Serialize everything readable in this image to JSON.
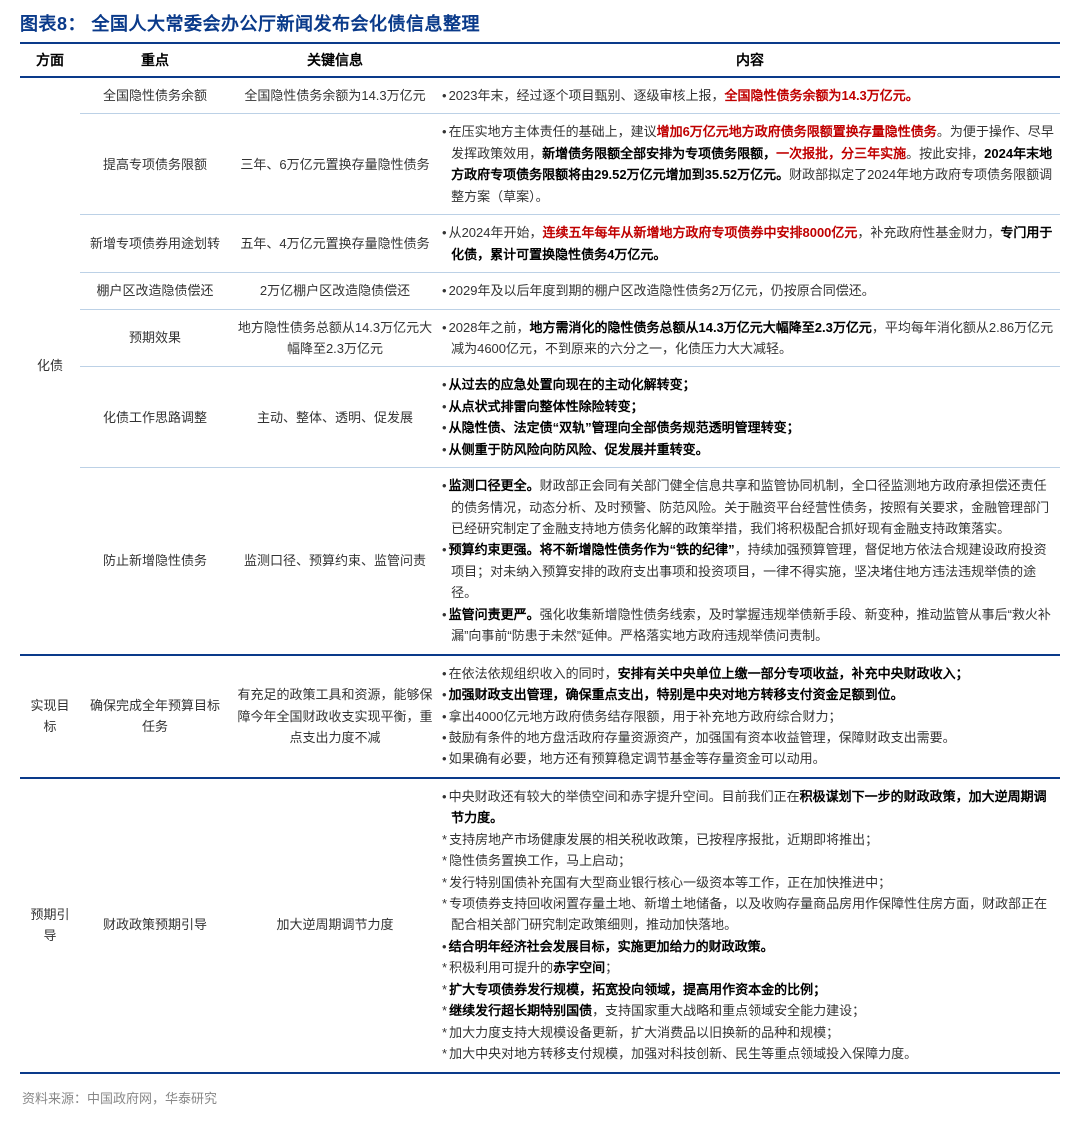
{
  "title": "图表8：  全国人大常委会办公厅新闻发布会化债信息整理",
  "source": "资料来源：中国政府网，华泰研究",
  "colors": {
    "accent": "#0a3a8a",
    "red": "#c00000",
    "row_border": "#bcd1e6",
    "muted": "#888"
  },
  "column_widths": [
    "60px",
    "150px",
    "210px",
    "auto"
  ],
  "headers": [
    "方面",
    "重点",
    "关键信息",
    "内容"
  ],
  "sections": [
    {
      "aspect": "化债",
      "rows": [
        {
          "focus": "全国隐性债务余额",
          "key": "全国隐性债务余额为14.3万亿元",
          "content": [
            {
              "t": "dot",
              "segs": [
                [
                  "",
                  "2023年末，经过逐个项目甄别、逐级审核上报，"
                ],
                [
                  "red",
                  "全国隐性债务余额为14.3万亿元。"
                ]
              ]
            }
          ]
        },
        {
          "focus": "提高专项债务限额",
          "key": "三年、6万亿元置换存量隐性债务",
          "content": [
            {
              "t": "dot",
              "segs": [
                [
                  "",
                  "在压实地方主体责任的基础上，建议"
                ],
                [
                  "red",
                  "增加6万亿元地方政府债务限额置换存量隐性债务"
                ],
                [
                  "",
                  "。为便于操作、尽早发挥政策效用，"
                ],
                [
                  "b",
                  "新增债务限额全部安排为专项债务限额，"
                ],
                [
                  "red",
                  "一次报批，分三年实施"
                ],
                [
                  "",
                  "。按此安排，"
                ],
                [
                  "b",
                  "2024年末地方政府专项债务限额将由29.52万亿元增加到35.52万亿元。"
                ],
                [
                  "",
                  "财政部拟定了2024年地方政府专项债务限额调整方案（草案）。"
                ]
              ]
            }
          ]
        },
        {
          "focus": "新增专项债券用途划转",
          "key": "五年、4万亿元置换存量隐性债务",
          "content": [
            {
              "t": "dot",
              "segs": [
                [
                  "",
                  "从2024年开始，"
                ],
                [
                  "red",
                  "连续五年每年从新增地方政府专项债券中安排8000亿元"
                ],
                [
                  "",
                  "，补充政府性基金财力，"
                ],
                [
                  "b",
                  "专门用于化债，累计可置换隐性债务4万亿元。"
                ]
              ]
            }
          ]
        },
        {
          "focus": "棚户区改造隐债偿还",
          "key": "2万亿棚户区改造隐债偿还",
          "content": [
            {
              "t": "dot",
              "segs": [
                [
                  "",
                  "2029年及以后年度到期的棚户区改造隐性债务2万亿元，仍按原合同偿还。"
                ]
              ]
            }
          ]
        },
        {
          "focus": "预期效果",
          "key": "地方隐性债务总额从14.3万亿元大幅降至2.3万亿元",
          "content": [
            {
              "t": "dot",
              "segs": [
                [
                  "",
                  "2028年之前，"
                ],
                [
                  "b",
                  "地方需消化的隐性债务总额从14.3万亿元大幅降至2.3万亿元"
                ],
                [
                  "",
                  "，平均每年消化额从2.86万亿元减为4600亿元，不到原来的六分之一，化债压力大大减轻。"
                ]
              ]
            }
          ]
        },
        {
          "focus": "化债工作思路调整",
          "key": "主动、整体、透明、促发展",
          "content": [
            {
              "t": "dot",
              "segs": [
                [
                  "b",
                  "从过去的应急处置向现在的主动化解转变；"
                ]
              ]
            },
            {
              "t": "dot",
              "segs": [
                [
                  "b",
                  "从点状式排雷向整体性除险转变；"
                ]
              ]
            },
            {
              "t": "dot",
              "segs": [
                [
                  "b",
                  "从隐性债、法定债“双轨”管理向全部债务规范透明管理转变；"
                ]
              ]
            },
            {
              "t": "dot",
              "segs": [
                [
                  "b",
                  "从侧重于防风险向防风险、促发展并重转变。"
                ]
              ]
            }
          ]
        },
        {
          "focus": "防止新增隐性债务",
          "key": "监测口径、预算约束、监管问责",
          "content": [
            {
              "t": "dot",
              "segs": [
                [
                  "b",
                  "监测口径更全。"
                ],
                [
                  "",
                  "财政部正会同有关部门健全信息共享和监管协同机制，全口径监测地方政府承担偿还责任的债务情况，动态分析、及时预警、防范风险。关于融资平台经营性债务，按照有关要求，金融管理部门已经研究制定了金融支持地方债务化解的政策举措，我们将积极配合抓好现有金融支持政策落实。"
                ]
              ]
            },
            {
              "t": "dot",
              "segs": [
                [
                  "b",
                  "预算约束更强。将不新增隐性债务作为“铁的纪律”"
                ],
                [
                  "",
                  "，持续加强预算管理，督促地方依法合规建设政府投资项目；对未纳入预算安排的政府支出事项和投资项目，一律不得实施，坚决堵住地方违法违规举债的途径。"
                ]
              ]
            },
            {
              "t": "dot",
              "segs": [
                [
                  "b",
                  "监管问责更严。"
                ],
                [
                  "",
                  "强化收集新增隐性债务线索，及时掌握违规举债新手段、新变种，推动监管从事后“救火补漏”向事前“防患于未然”延伸。严格落实地方政府违规举债问责制。"
                ]
              ]
            }
          ],
          "section_end": true
        }
      ]
    },
    {
      "aspect": "实现目标",
      "rows": [
        {
          "focus": "确保完成全年预算目标任务",
          "key": "有充足的政策工具和资源，能够保障今年全国财政收支实现平衡，重点支出力度不减",
          "content": [
            {
              "t": "dot",
              "segs": [
                [
                  "",
                  "在依法依规组织收入的同时，"
                ],
                [
                  "b",
                  "安排有关中央单位上缴一部分专项收益，补充中央财政收入；"
                ]
              ]
            },
            {
              "t": "dot",
              "segs": [
                [
                  "b",
                  "加强财政支出管理，确保重点支出，特别是中央对地方转移支付资金足额到位。"
                ]
              ]
            },
            {
              "t": "dot",
              "segs": [
                [
                  "",
                  "拿出4000亿元地方政府债务结存限额，用于补充地方政府综合财力；"
                ]
              ]
            },
            {
              "t": "dot",
              "segs": [
                [
                  "",
                  "鼓励有条件的地方盘活政府存量资源资产，加强国有资本收益管理，保障财政支出需要。"
                ]
              ]
            },
            {
              "t": "dot",
              "segs": [
                [
                  "",
                  "如果确有必要，地方还有预算稳定调节基金等存量资金可以动用。"
                ]
              ]
            }
          ],
          "section_end": true
        }
      ]
    },
    {
      "aspect": "预期引导",
      "rows": [
        {
          "focus": "财政政策预期引导",
          "key": "加大逆周期调节力度",
          "content": [
            {
              "t": "dot",
              "segs": [
                [
                  "",
                  "中央财政还有较大的举债空间和赤字提升空间。目前我们正在"
                ],
                [
                  "b",
                  "积极谋划下一步的财政政策，加大逆周期调节力度。"
                ]
              ]
            },
            {
              "t": "star",
              "segs": [
                [
                  "",
                  "支持房地产市场健康发展的相关税收政策，已按程序报批，近期即将推出；"
                ]
              ]
            },
            {
              "t": "star",
              "segs": [
                [
                  "",
                  "隐性债务置换工作，马上启动；"
                ]
              ]
            },
            {
              "t": "star",
              "segs": [
                [
                  "",
                  "发行特别国债补充国有大型商业银行核心一级资本等工作，正在加快推进中；"
                ]
              ]
            },
            {
              "t": "star",
              "segs": [
                [
                  "",
                  "专项债券支持回收闲置存量土地、新增土地储备，以及收购存量商品房用作保障性住房方面，财政部正在配合相关部门研究制定政策细则，推动加快落地。"
                ]
              ]
            },
            {
              "t": "dot",
              "segs": [
                [
                  "b",
                  "结合明年经济社会发展目标，实施更加给力的财政政策。"
                ]
              ]
            },
            {
              "t": "star",
              "segs": [
                [
                  "",
                  "积极利用可提升的"
                ],
                [
                  "b",
                  "赤字空间"
                ],
                [
                  "",
                  "；"
                ]
              ]
            },
            {
              "t": "star",
              "segs": [
                [
                  "b",
                  "扩大专项债券发行规模，拓宽投向领域，提高用作资本金的比例；"
                ]
              ]
            },
            {
              "t": "star",
              "segs": [
                [
                  "b",
                  "继续发行超长期特别国债"
                ],
                [
                  "",
                  "，支持国家重大战略和重点领域安全能力建设；"
                ]
              ]
            },
            {
              "t": "star",
              "segs": [
                [
                  "",
                  "加大力度支持大规模设备更新，扩大消费品以旧换新的品种和规模；"
                ]
              ]
            },
            {
              "t": "star",
              "segs": [
                [
                  "",
                  "加大中央对地方转移支付规模，加强对科技创新、民生等重点领域投入保障力度。"
                ]
              ]
            }
          ],
          "section_end": false
        }
      ]
    }
  ]
}
